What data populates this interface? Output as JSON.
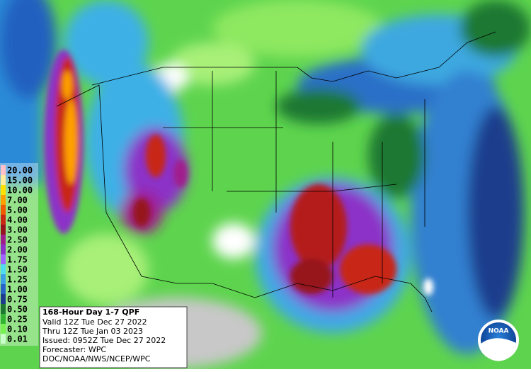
{
  "legend": {
    "items": [
      {
        "label": "20.00",
        "color": "#ffc0c8"
      },
      {
        "label": "15.00",
        "color": "#ffeb9e"
      },
      {
        "label": "10.00",
        "color": "#ffe000"
      },
      {
        "label": "7.00",
        "color": "#ffa000"
      },
      {
        "label": "5.00",
        "color": "#f05a00"
      },
      {
        "label": "4.00",
        "color": "#c82814"
      },
      {
        "label": "3.00",
        "color": "#96141e"
      },
      {
        "label": "2.50",
        "color": "#a01e8c"
      },
      {
        "label": "2.00",
        "color": "#8c32c8"
      },
      {
        "label": "1.75",
        "color": "#a064ff"
      },
      {
        "label": "1.50",
        "color": "#50dcf0"
      },
      {
        "label": "1.25",
        "color": "#3ca0e6"
      },
      {
        "label": "1.00",
        "color": "#2864c8"
      },
      {
        "label": "0.75",
        "color": "#1e3c8c"
      },
      {
        "label": "0.50",
        "color": "#1e7832"
      },
      {
        "label": "0.25",
        "color": "#32b432"
      },
      {
        "label": "0.10",
        "color": "#78f050"
      },
      {
        "label": "0.01",
        "color": "#c8ffc8"
      }
    ]
  },
  "info": {
    "title": "168-Hour Day 1-7 QPF",
    "lines": [
      "Valid 12Z Tue Dec 27 2022",
      "Thru 12Z Tue Jan 03 2023",
      "Issued: 0952Z Tue Dec 27 2022",
      "Forecaster: WPC",
      "DOC/NOAA/NWS/NCEP/WPC"
    ]
  },
  "logo": {
    "text": "NOAA"
  }
}
